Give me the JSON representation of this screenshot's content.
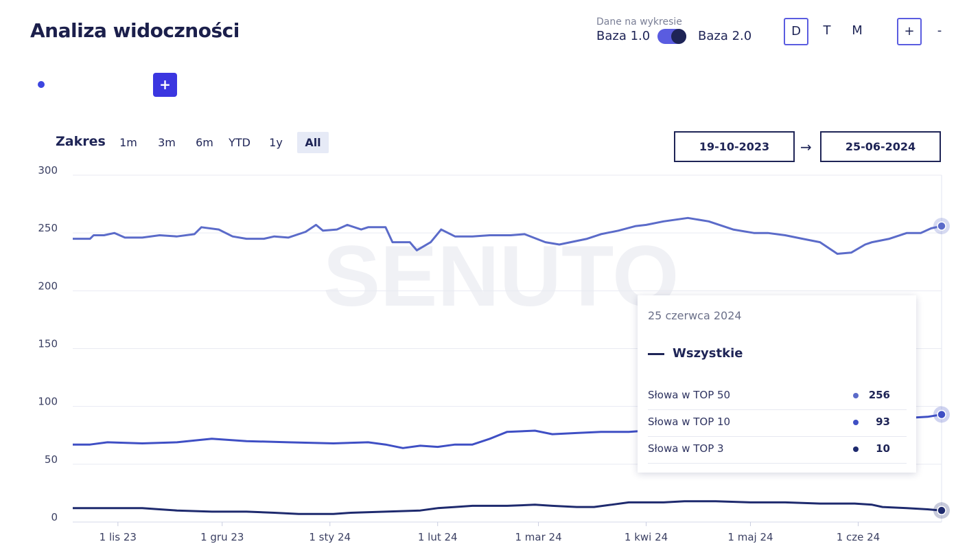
{
  "header": {
    "title": "Analiza widoczności",
    "data_label": "Dane na wykresie",
    "base_left": "Baza 1.0",
    "base_right": "Baza 2.0",
    "toggle_on": true,
    "periods": [
      "D",
      "T",
      "M"
    ],
    "active_period": "D",
    "zoom_in": "+",
    "zoom_out": "-"
  },
  "add_button": "+",
  "range": {
    "label": "Zakres",
    "options": [
      "1m",
      "3m",
      "6m",
      "YTD",
      "1y",
      "All"
    ],
    "active": "All",
    "date_from": "19-10-2023",
    "arrow": "→",
    "date_to": "25-06-2024"
  },
  "watermark": "SENUTO",
  "tooltip": {
    "date": "25 czerwca 2024",
    "legend": "Wszystkie",
    "rows": [
      {
        "label": "Słowa w TOP 50",
        "value": "256",
        "color": "#5b6bc9"
      },
      {
        "label": "Słowa w TOP 10",
        "value": "93",
        "color": "#3f4fc4"
      },
      {
        "label": "Słowa w TOP 3",
        "value": "10",
        "color": "#1e2a6e"
      }
    ]
  },
  "chart_data": {
    "type": "line",
    "x_ticks": [
      "1 lis 23",
      "1 gru 23",
      "1 sty 24",
      "1 lut 24",
      "1 mar 24",
      "1 kwi 24",
      "1 maj 24",
      "1 cze 24"
    ],
    "x_tick_days": [
      13,
      43,
      74,
      105,
      134,
      165,
      195,
      226
    ],
    "x_range_days": [
      0,
      250
    ],
    "y_ticks": [
      0,
      50,
      100,
      150,
      200,
      250,
      300
    ],
    "ylim": [
      0,
      300
    ],
    "grid": true,
    "series": [
      {
        "name": "Słowa w TOP 50",
        "color": "#5b6bc9",
        "points": [
          [
            0,
            245
          ],
          [
            5,
            245
          ],
          [
            6,
            248
          ],
          [
            9,
            248
          ],
          [
            12,
            250
          ],
          [
            15,
            246
          ],
          [
            20,
            246
          ],
          [
            25,
            248
          ],
          [
            30,
            247
          ],
          [
            35,
            249
          ],
          [
            37,
            255
          ],
          [
            42,
            253
          ],
          [
            46,
            247
          ],
          [
            50,
            245
          ],
          [
            55,
            245
          ],
          [
            58,
            247
          ],
          [
            62,
            246
          ],
          [
            67,
            251
          ],
          [
            70,
            257
          ],
          [
            72,
            252
          ],
          [
            76,
            253
          ],
          [
            79,
            257
          ],
          [
            83,
            253
          ],
          [
            85,
            255
          ],
          [
            90,
            255
          ],
          [
            92,
            242
          ],
          [
            97,
            242
          ],
          [
            99,
            235
          ],
          [
            103,
            242
          ],
          [
            106,
            253
          ],
          [
            110,
            247
          ],
          [
            115,
            247
          ],
          [
            120,
            248
          ],
          [
            126,
            248
          ],
          [
            130,
            249
          ],
          [
            136,
            242
          ],
          [
            140,
            240
          ],
          [
            148,
            245
          ],
          [
            152,
            249
          ],
          [
            157,
            252
          ],
          [
            162,
            256
          ],
          [
            165,
            257
          ],
          [
            170,
            260
          ],
          [
            177,
            263
          ],
          [
            183,
            260
          ],
          [
            190,
            253
          ],
          [
            196,
            250
          ],
          [
            200,
            250
          ],
          [
            205,
            248
          ],
          [
            210,
            245
          ],
          [
            215,
            242
          ],
          [
            220,
            232
          ],
          [
            224,
            233
          ],
          [
            228,
            240
          ],
          [
            230,
            242
          ],
          [
            235,
            245
          ],
          [
            240,
            250
          ],
          [
            244,
            250
          ],
          [
            247,
            254
          ],
          [
            250,
            256
          ]
        ]
      },
      {
        "name": "Słowa w TOP 10",
        "color": "#3f4fc4",
        "points": [
          [
            0,
            67
          ],
          [
            5,
            67
          ],
          [
            10,
            69
          ],
          [
            20,
            68
          ],
          [
            30,
            69
          ],
          [
            40,
            72
          ],
          [
            50,
            70
          ],
          [
            62,
            69
          ],
          [
            75,
            68
          ],
          [
            85,
            69
          ],
          [
            90,
            67
          ],
          [
            95,
            64
          ],
          [
            100,
            66
          ],
          [
            105,
            65
          ],
          [
            110,
            67
          ],
          [
            115,
            67
          ],
          [
            120,
            72
          ],
          [
            125,
            78
          ],
          [
            133,
            79
          ],
          [
            138,
            76
          ],
          [
            145,
            77
          ],
          [
            152,
            78
          ],
          [
            160,
            78
          ],
          [
            170,
            80
          ],
          [
            180,
            82
          ],
          [
            195,
            86
          ],
          [
            205,
            86
          ],
          [
            212,
            84
          ],
          [
            220,
            86
          ],
          [
            230,
            87
          ],
          [
            240,
            90
          ],
          [
            246,
            91
          ],
          [
            250,
            93
          ]
        ]
      },
      {
        "name": "Słowa w TOP 3",
        "color": "#1e2a6e",
        "points": [
          [
            0,
            12
          ],
          [
            8,
            12
          ],
          [
            14,
            12
          ],
          [
            20,
            12
          ],
          [
            25,
            11
          ],
          [
            30,
            10
          ],
          [
            40,
            9
          ],
          [
            50,
            9
          ],
          [
            58,
            8
          ],
          [
            65,
            7
          ],
          [
            75,
            7
          ],
          [
            80,
            8
          ],
          [
            90,
            9
          ],
          [
            100,
            10
          ],
          [
            105,
            12
          ],
          [
            110,
            13
          ],
          [
            115,
            14
          ],
          [
            125,
            14
          ],
          [
            133,
            15
          ],
          [
            138,
            14
          ],
          [
            145,
            13
          ],
          [
            150,
            13
          ],
          [
            155,
            15
          ],
          [
            160,
            17
          ],
          [
            170,
            17
          ],
          [
            176,
            18
          ],
          [
            185,
            18
          ],
          [
            195,
            17
          ],
          [
            205,
            17
          ],
          [
            215,
            16
          ],
          [
            225,
            16
          ],
          [
            230,
            15
          ],
          [
            233,
            13
          ],
          [
            240,
            12
          ],
          [
            246,
            11
          ],
          [
            250,
            10
          ]
        ]
      }
    ]
  }
}
